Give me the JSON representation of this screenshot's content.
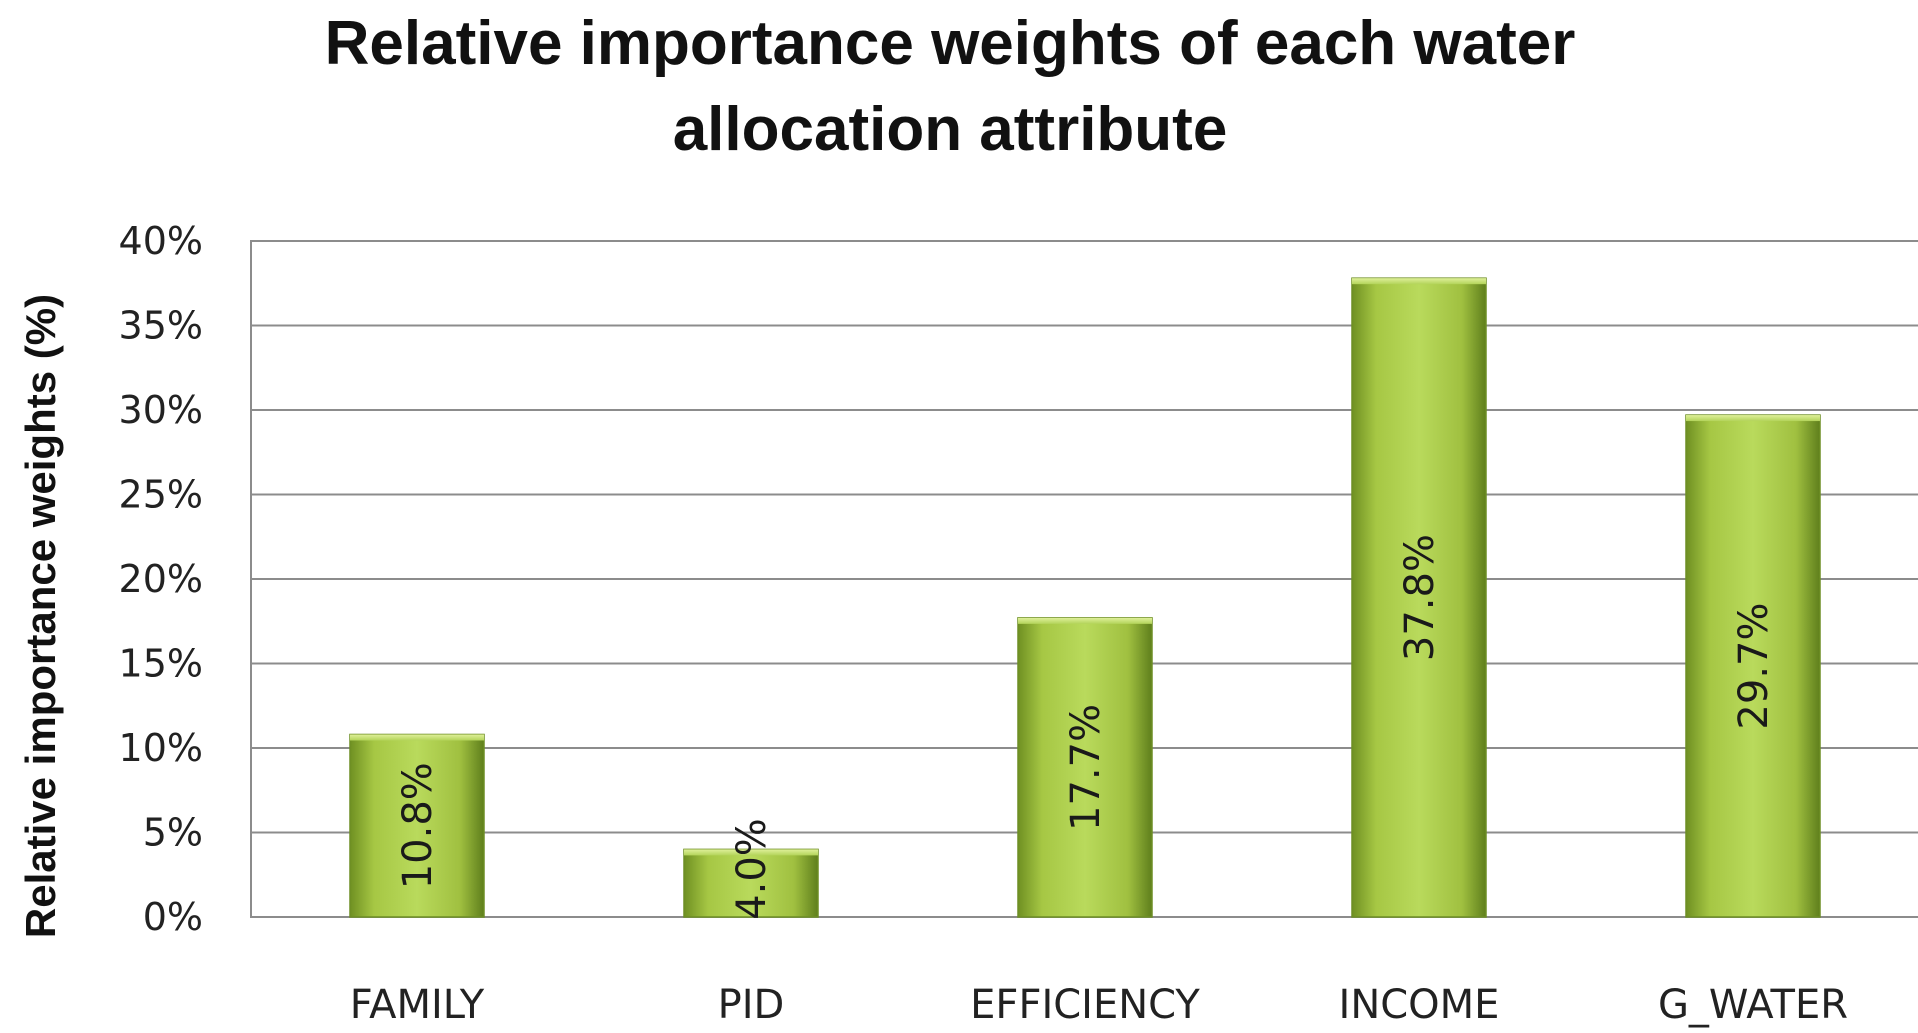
{
  "chart_data": {
    "type": "bar",
    "title_lines": [
      "Relative importance weights of each water",
      "allocation attribute"
    ],
    "xlabel": "",
    "ylabel": "Relative importance weights (%)",
    "categories": [
      "FAMILY",
      "PID",
      "EFFICIENCY",
      "INCOME",
      "G_WATER"
    ],
    "values": [
      10.8,
      4.0,
      17.7,
      37.8,
      29.7
    ],
    "data_labels": [
      "10.8%",
      "4.0%",
      "17.7%",
      "37.8%",
      "29.7%"
    ],
    "ylim": [
      0,
      40
    ],
    "y_ticks": [
      0,
      5,
      10,
      15,
      20,
      25,
      30,
      35,
      40
    ],
    "y_tick_labels": [
      "0%",
      "5%",
      "10%",
      "15%",
      "20%",
      "25%",
      "30%",
      "35%",
      "40%"
    ],
    "grid": true,
    "legend": "none",
    "colors": {
      "bar_light": "#c4e070",
      "bar_mid": "#9bbb3b",
      "bar_dark": "#5f7f1c",
      "gridline": "#8c8c8c"
    }
  }
}
